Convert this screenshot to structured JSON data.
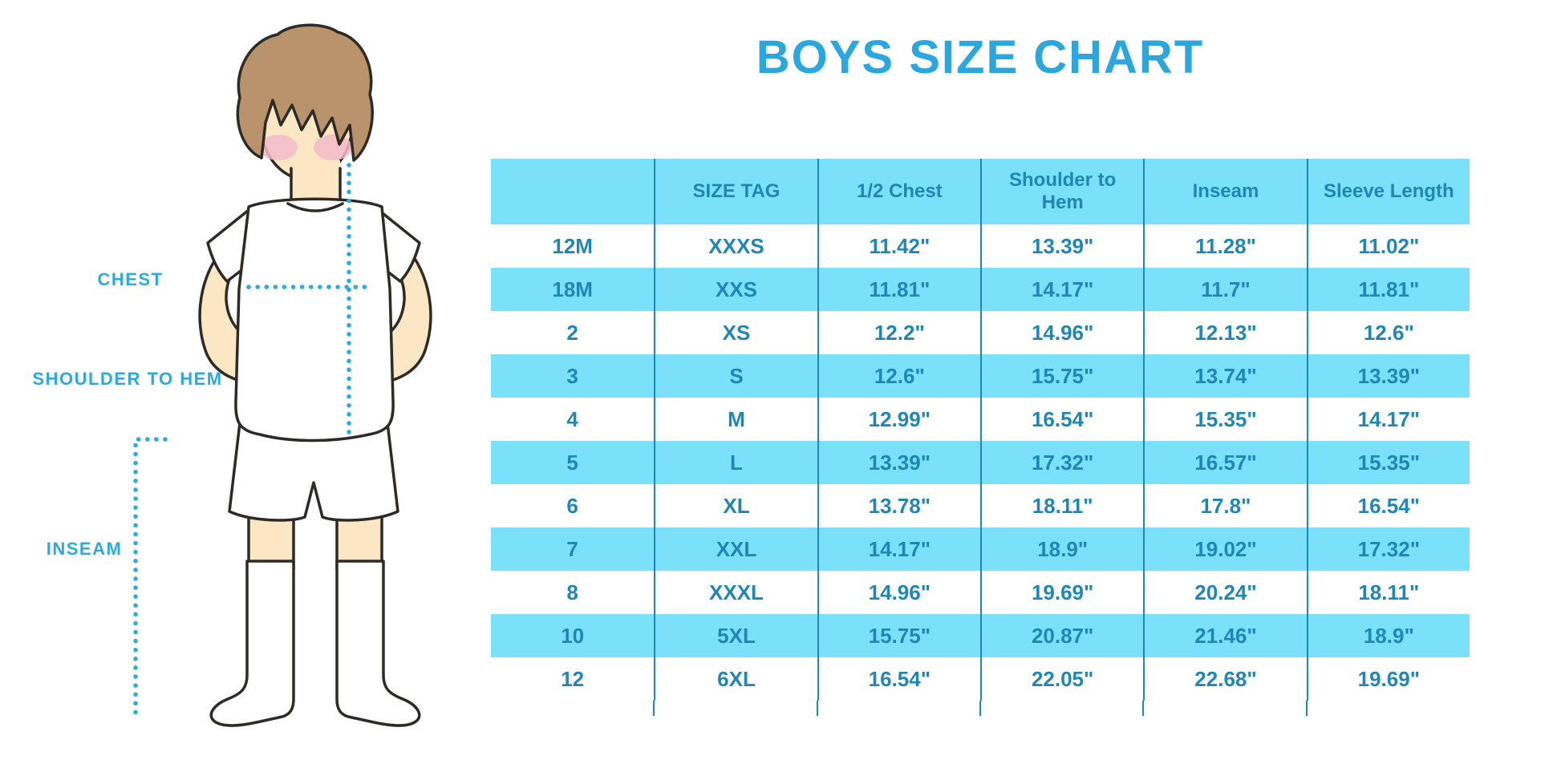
{
  "title": "BOYS SIZE CHART",
  "diagram": {
    "chest_label": "CHEST",
    "shoulder_to_hem_label": "SHOULDER TO HEM",
    "inseam_label": "INSEAM",
    "illustration": "cartoon boy with brown hair, white t-shirt, white shorts and knee-high socks, dotted cyan measurement lines for chest, shoulder-to-hem and inseam"
  },
  "chart_data": {
    "type": "table",
    "title": "BOYS SIZE CHART",
    "columns": [
      "",
      "SIZE TAG",
      "1/2 Chest",
      "Shoulder to Hem",
      "Inseam",
      "Sleeve Length"
    ],
    "rows": [
      [
        "12M",
        "XXXS",
        "11.42\"",
        "13.39\"",
        "11.28\"",
        "11.02\""
      ],
      [
        "18M",
        "XXS",
        "11.81\"",
        "14.17\"",
        "11.7\"",
        "11.81\""
      ],
      [
        "2",
        "XS",
        "12.2\"",
        "14.96\"",
        "12.13\"",
        "12.6\""
      ],
      [
        "3",
        "S",
        "12.6\"",
        "15.75\"",
        "13.74\"",
        "13.39\""
      ],
      [
        "4",
        "M",
        "12.99\"",
        "16.54\"",
        "15.35\"",
        "14.17\""
      ],
      [
        "5",
        "L",
        "13.39\"",
        "17.32\"",
        "16.57\"",
        "15.35\""
      ],
      [
        "6",
        "XL",
        "13.78\"",
        "18.11\"",
        "17.8\"",
        "16.54\""
      ],
      [
        "7",
        "XXL",
        "14.17\"",
        "18.9\"",
        "19.02\"",
        "17.32\""
      ],
      [
        "8",
        "XXXL",
        "14.96\"",
        "19.69\"",
        "20.24\"",
        "18.11\""
      ],
      [
        "10",
        "5XL",
        "15.75\"",
        "20.87\"",
        "21.46\"",
        "18.9\""
      ],
      [
        "12",
        "6XL",
        "16.54\"",
        "22.05\"",
        "22.68\"",
        "19.69\""
      ]
    ],
    "stripe_pattern": "header and every second data row filled light cyan",
    "units": "inches"
  },
  "colors": {
    "title_blue": "#2BA7E0",
    "table_text_blue": "#1E87B8",
    "row_stripe_cyan": "#7BE0F9",
    "measure_label_blue": "#29ABE2",
    "dotted_line_cyan": "#29ABE2",
    "skin": "#FBE7C3",
    "hair_brown": "#B8936B",
    "blush_pink": "#F3BBCA",
    "outline_dark": "#2E2A26"
  }
}
